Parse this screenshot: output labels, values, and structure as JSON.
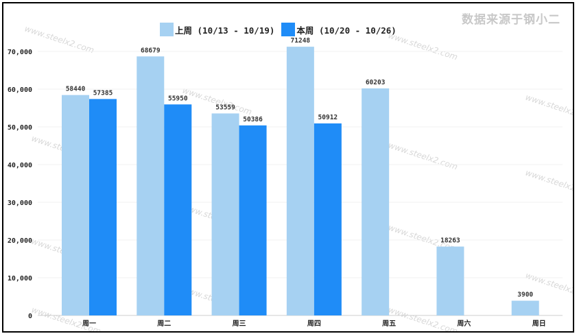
{
  "watermark": "数据来源于钢小二",
  "background_watermark": "www.steelx2.com",
  "chart_data": {
    "type": "bar",
    "categories": [
      "周一",
      "周二",
      "周三",
      "周四",
      "周五",
      "周六",
      "周日"
    ],
    "series": [
      {
        "name": "上周 (10/13 - 10/19)",
        "color": "#a6d1f2",
        "values": [
          58440,
          68679,
          53559,
          71248,
          60203,
          18263,
          3900
        ]
      },
      {
        "name": "本周 (10/20 - 10/26)",
        "color": "#1f8cf7",
        "values": [
          57385,
          55950,
          50386,
          50912,
          null,
          null,
          null
        ]
      }
    ],
    "ylim": [
      0,
      70000
    ],
    "yticks": [
      0,
      10000,
      20000,
      30000,
      40000,
      50000,
      60000,
      70000
    ],
    "ytick_labels": [
      "0",
      "10,000",
      "20,000",
      "30,000",
      "40,000",
      "50,000",
      "60,000",
      "70,000"
    ],
    "grid": true,
    "legend": "top-center",
    "title": "",
    "xlabel": "",
    "ylabel": ""
  }
}
